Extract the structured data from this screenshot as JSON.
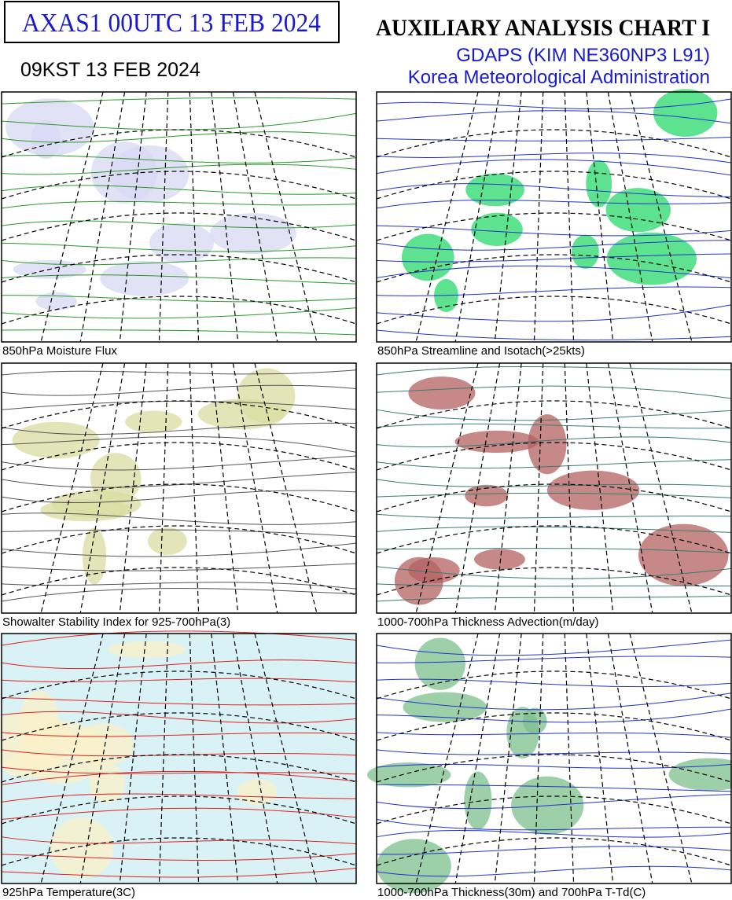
{
  "header": {
    "code_box": "AXAS1  00UTC 13 FEB 2024",
    "kst": "09KST 13 FEB 2024",
    "title": "AUXILIARY ANALYSIS CHART  I",
    "model": "GDAPS (KIM NE360NP3 L91)",
    "agency": "Korea Meteorological Administration"
  },
  "panels": [
    {
      "caption": "850hPa Moisture Flux"
    },
    {
      "caption": "850hPa Streamline and Isotach(>25kts)"
    },
    {
      "caption": "Showalter Stability Index for 925-700hPa(3)"
    },
    {
      "caption": "1000-700hPa Thickness Advection(m/day)"
    },
    {
      "caption": "925hPa Temperature(3C)"
    },
    {
      "caption": "1000-700hPa Thickness(30m) and 700hPa T-Td(C)"
    }
  ]
}
